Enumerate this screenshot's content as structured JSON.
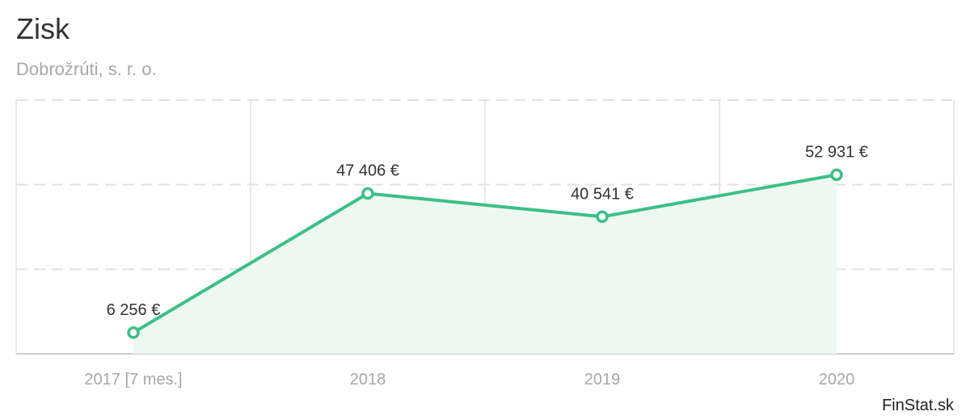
{
  "header": {
    "title": "Zisk",
    "subtitle": "Dobrožrúti, s. r. o."
  },
  "brand": "FinStat.sk",
  "colors": {
    "line": "#3dbf87",
    "area": "#eef8f3",
    "grid": "#e2e2e2"
  },
  "chart_data": {
    "type": "area",
    "title": "Zisk",
    "subtitle": "Dobrožrúti, s. r. o.",
    "categories": [
      "2017 [7 mes.]",
      "2018",
      "2019",
      "2020"
    ],
    "series": [
      {
        "values": [
          6256,
          47406,
          40541,
          52931
        ],
        "labels": [
          "6 256 €",
          "47 406 €",
          "40 541 €",
          "52 931 €"
        ]
      }
    ],
    "ylim": [
      0,
      75000
    ],
    "y_gridlines": [
      25000,
      50000,
      75000
    ],
    "xlabel": "",
    "ylabel": "",
    "grid": true,
    "legend": "none"
  }
}
